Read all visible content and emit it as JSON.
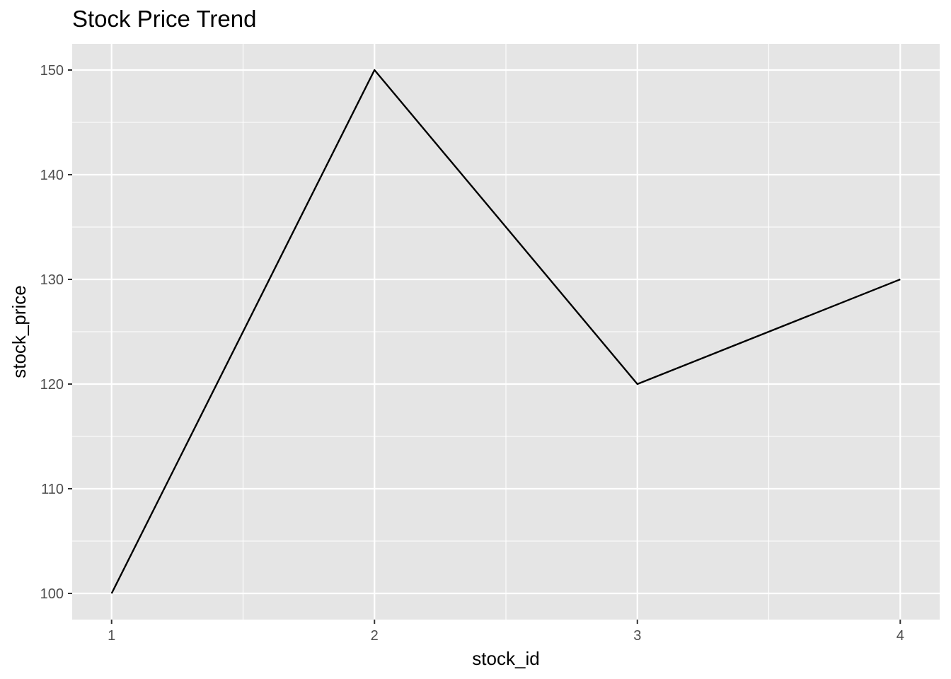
{
  "chart_data": {
    "type": "line",
    "title": "Stock Price Trend",
    "xlabel": "stock_id",
    "ylabel": "stock_price",
    "x": [
      1,
      2,
      3,
      4
    ],
    "series": [
      {
        "values": [
          100,
          150,
          120,
          130
        ]
      }
    ],
    "xlim": [
      0.85,
      4.15
    ],
    "ylim": [
      97.5,
      152.5
    ],
    "x_ticks": [
      1,
      2,
      3,
      4
    ],
    "y_ticks": [
      100,
      110,
      120,
      130,
      140,
      150
    ],
    "grid": true,
    "colors": {
      "panel": "#e5e5e5",
      "grid": "#ffffff",
      "line": "#000000",
      "tick_text": "#4d4d4d",
      "tick_mark": "#333333"
    }
  }
}
